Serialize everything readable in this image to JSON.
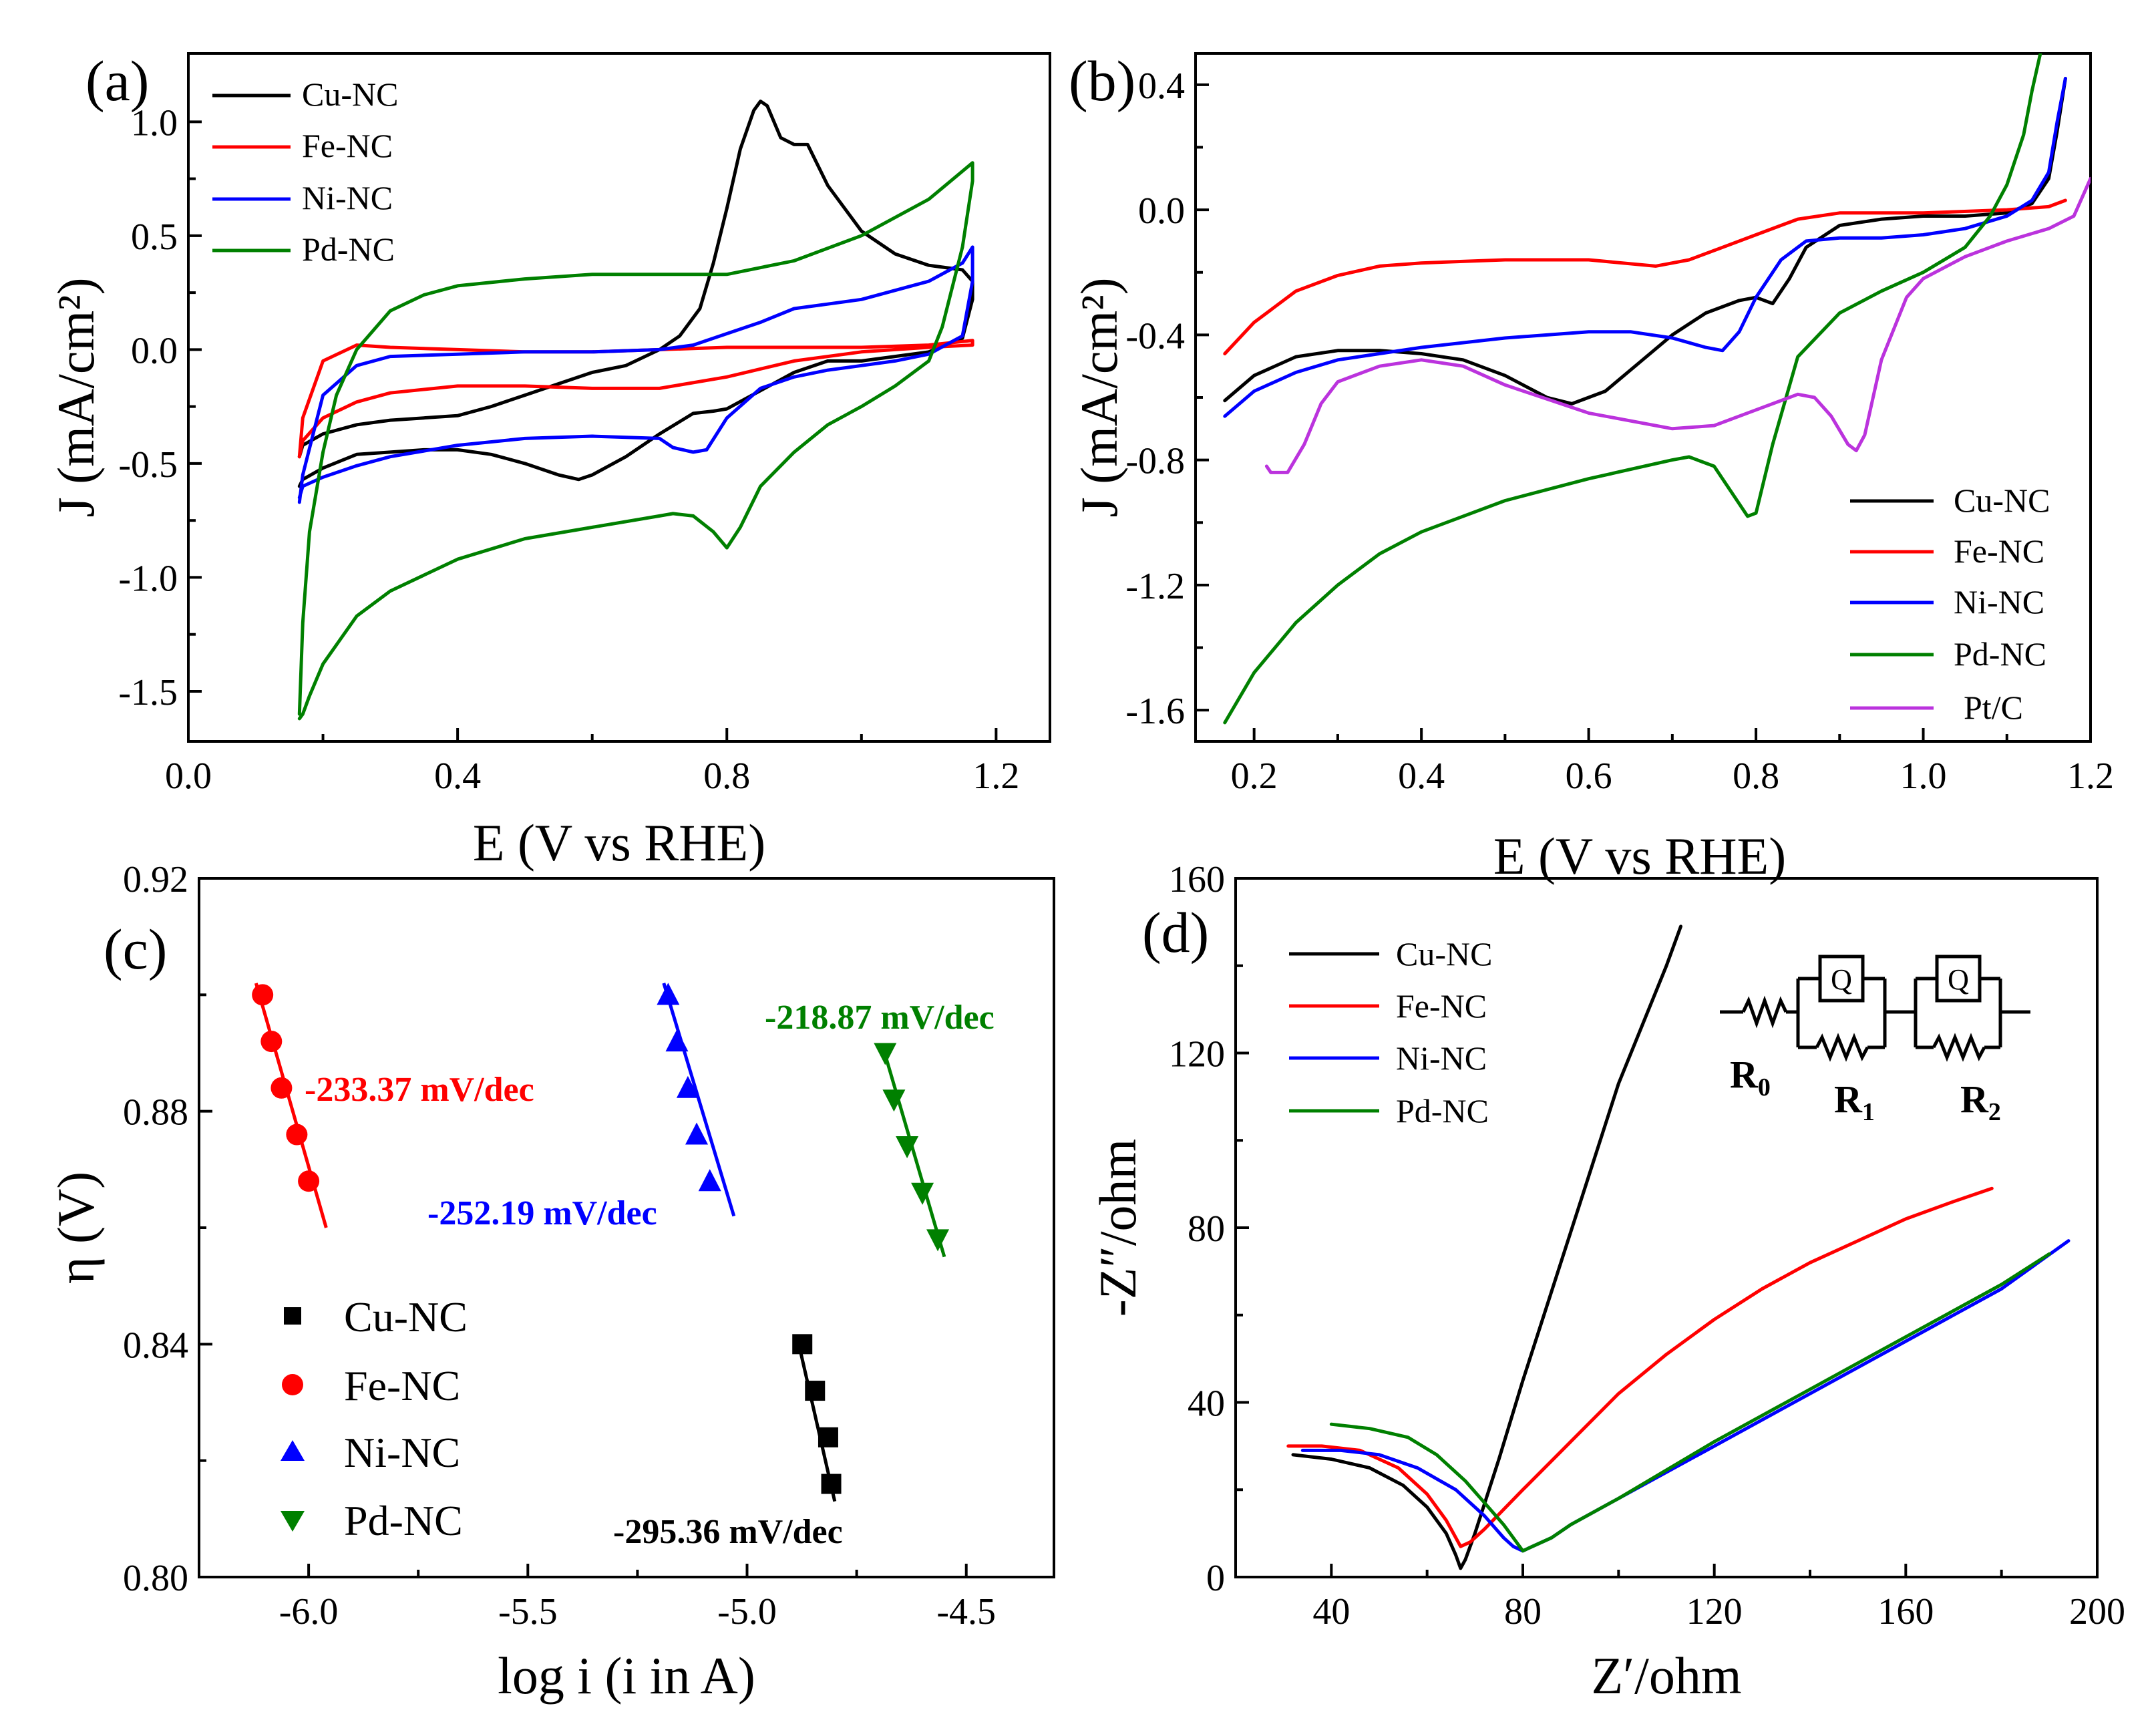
{
  "chart_data": [
    {
      "panel": "(a)",
      "type": "line",
      "xlabel": "E (V vs RHE)",
      "ylabel": "J (mA/cm²)",
      "xlim": [
        0.0,
        1.28
      ],
      "ylim": [
        -1.72,
        1.3
      ],
      "xticks": [
        0.0,
        0.4,
        0.8,
        1.2
      ],
      "xtick_labels": [
        "0.0",
        "0.4",
        "0.8",
        "1.2"
      ],
      "yticks": [
        -1.5,
        -1.0,
        -0.5,
        0.0,
        0.5,
        1.0
      ],
      "ytick_labels": [
        "-1.5",
        "-1.0",
        "-0.5",
        "0.0",
        "0.5",
        "1.0"
      ],
      "legend": [
        "Cu-NC",
        "Fe-NC",
        "Ni-NC",
        "Pd-NC"
      ],
      "series": [
        {
          "name": "Cu-NC",
          "color": "#000000",
          "x": [
            0.165,
            0.17,
            0.2,
            0.25,
            0.3,
            0.35,
            0.4,
            0.45,
            0.5,
            0.55,
            0.6,
            0.65,
            0.7,
            0.73,
            0.76,
            0.78,
            0.8,
            0.82,
            0.84,
            0.85,
            0.86,
            0.87,
            0.88,
            0.9,
            0.92,
            0.95,
            1.0,
            1.05,
            1.1,
            1.15,
            1.165,
            1.165,
            1.15,
            1.1,
            1.05,
            1.0,
            0.95,
            0.9,
            0.85,
            0.8,
            0.78,
            0.75,
            0.7,
            0.65,
            0.6,
            0.58,
            0.55,
            0.5,
            0.45,
            0.4,
            0.35,
            0.3,
            0.25,
            0.2,
            0.17,
            0.165
          ],
          "y": [
            -0.47,
            -0.42,
            -0.37,
            -0.33,
            -0.31,
            -0.3,
            -0.29,
            -0.25,
            -0.2,
            -0.15,
            -0.1,
            -0.07,
            0.0,
            0.06,
            0.18,
            0.38,
            0.62,
            0.88,
            1.05,
            1.09,
            1.07,
            1.0,
            0.93,
            0.9,
            0.9,
            0.72,
            0.52,
            0.42,
            0.37,
            0.35,
            0.3,
            0.22,
            0.05,
            -0.01,
            -0.03,
            -0.05,
            -0.05,
            -0.1,
            -0.18,
            -0.26,
            -0.27,
            -0.28,
            -0.37,
            -0.47,
            -0.55,
            -0.57,
            -0.55,
            -0.5,
            -0.46,
            -0.44,
            -0.44,
            -0.45,
            -0.46,
            -0.52,
            -0.57,
            -0.6
          ]
        },
        {
          "name": "Fe-NC",
          "color": "#ff0000",
          "x": [
            0.165,
            0.17,
            0.2,
            0.25,
            0.3,
            0.4,
            0.5,
            0.6,
            0.7,
            0.8,
            0.9,
            1.0,
            1.1,
            1.165,
            1.165,
            1.1,
            1.0,
            0.9,
            0.8,
            0.7,
            0.6,
            0.5,
            0.4,
            0.3,
            0.25,
            0.2,
            0.17,
            0.165
          ],
          "y": [
            -0.47,
            -0.3,
            -0.05,
            0.02,
            0.01,
            0.0,
            -0.01,
            -0.01,
            0.0,
            0.01,
            0.01,
            0.01,
            0.02,
            0.04,
            0.02,
            0.01,
            -0.01,
            -0.05,
            -0.12,
            -0.17,
            -0.17,
            -0.16,
            -0.16,
            -0.19,
            -0.23,
            -0.3,
            -0.4,
            -0.47
          ]
        },
        {
          "name": "Ni-NC",
          "color": "#0000ff",
          "x": [
            0.165,
            0.17,
            0.2,
            0.25,
            0.3,
            0.4,
            0.5,
            0.6,
            0.7,
            0.75,
            0.8,
            0.85,
            0.9,
            0.95,
            1.0,
            1.05,
            1.1,
            1.15,
            1.165,
            1.165,
            1.15,
            1.1,
            1.05,
            1.0,
            0.95,
            0.9,
            0.85,
            0.8,
            0.77,
            0.75,
            0.72,
            0.7,
            0.6,
            0.5,
            0.4,
            0.3,
            0.25,
            0.2,
            0.17,
            0.165
          ],
          "y": [
            -0.67,
            -0.55,
            -0.2,
            -0.07,
            -0.03,
            -0.02,
            -0.01,
            -0.01,
            0.0,
            0.02,
            0.07,
            0.12,
            0.18,
            0.2,
            0.22,
            0.26,
            0.3,
            0.38,
            0.45,
            0.3,
            0.06,
            -0.02,
            -0.05,
            -0.07,
            -0.09,
            -0.12,
            -0.17,
            -0.3,
            -0.44,
            -0.45,
            -0.43,
            -0.39,
            -0.38,
            -0.39,
            -0.42,
            -0.47,
            -0.51,
            -0.56,
            -0.6,
            -0.65
          ]
        },
        {
          "name": "Pd-NC",
          "color": "#008000",
          "x": [
            0.165,
            0.17,
            0.18,
            0.2,
            0.22,
            0.25,
            0.3,
            0.35,
            0.4,
            0.5,
            0.6,
            0.7,
            0.8,
            0.9,
            1.0,
            1.1,
            1.165,
            1.165,
            1.15,
            1.12,
            1.1,
            1.05,
            1.0,
            0.95,
            0.9,
            0.85,
            0.82,
            0.8,
            0.78,
            0.75,
            0.72,
            0.7,
            0.6,
            0.5,
            0.4,
            0.3,
            0.25,
            0.2,
            0.18,
            0.17,
            0.165
          ],
          "y": [
            -1.6,
            -1.2,
            -0.8,
            -0.45,
            -0.2,
            0.0,
            0.17,
            0.24,
            0.28,
            0.31,
            0.33,
            0.33,
            0.33,
            0.39,
            0.5,
            0.66,
            0.82,
            0.74,
            0.45,
            0.1,
            -0.05,
            -0.16,
            -0.25,
            -0.33,
            -0.45,
            -0.6,
            -0.78,
            -0.87,
            -0.8,
            -0.73,
            -0.72,
            -0.73,
            -0.78,
            -0.83,
            -0.92,
            -1.06,
            -1.17,
            -1.38,
            -1.52,
            -1.6,
            -1.62
          ]
        }
      ]
    },
    {
      "panel": "(b)",
      "type": "line",
      "xlabel": "E (V vs RHE)",
      "ylabel": "J (mA/cm²)",
      "xlim": [
        0.13,
        1.2
      ],
      "ylim": [
        -1.7,
        0.5
      ],
      "xticks": [
        0.2,
        0.4,
        0.6,
        0.8,
        1.0,
        1.2
      ],
      "xtick_labels": [
        "0.2",
        "0.4",
        "0.6",
        "0.8",
        "1.0",
        "1.2"
      ],
      "yticks": [
        -1.6,
        -1.2,
        -0.8,
        -0.4,
        0.0,
        0.4
      ],
      "ytick_labels": [
        "-1.6",
        "-1.2",
        "-0.8",
        "-0.4",
        "0.0",
        "0.4"
      ],
      "legend": [
        "Cu-NC",
        "Fe-NC",
        "Ni-NC",
        "Pd-NC",
        "Pt/C"
      ],
      "series": [
        {
          "name": "Cu-NC",
          "color": "#000000",
          "x": [
            0.165,
            0.2,
            0.25,
            0.3,
            0.35,
            0.4,
            0.45,
            0.5,
            0.55,
            0.58,
            0.62,
            0.66,
            0.7,
            0.74,
            0.78,
            0.8,
            0.82,
            0.84,
            0.86,
            0.9,
            0.95,
            1.0,
            1.05,
            1.1,
            1.13,
            1.15,
            1.16,
            1.17
          ],
          "y": [
            -0.61,
            -0.53,
            -0.47,
            -0.45,
            -0.45,
            -0.46,
            -0.48,
            -0.53,
            -0.6,
            -0.62,
            -0.58,
            -0.49,
            -0.4,
            -0.33,
            -0.29,
            -0.28,
            -0.3,
            -0.22,
            -0.12,
            -0.05,
            -0.03,
            -0.02,
            -0.02,
            -0.01,
            0.02,
            0.1,
            0.25,
            0.42
          ]
        },
        {
          "name": "Fe-NC",
          "color": "#ff0000",
          "x": [
            0.165,
            0.2,
            0.25,
            0.3,
            0.35,
            0.4,
            0.5,
            0.6,
            0.68,
            0.72,
            0.76,
            0.8,
            0.85,
            0.9,
            1.0,
            1.1,
            1.15,
            1.17
          ],
          "y": [
            -0.46,
            -0.36,
            -0.26,
            -0.21,
            -0.18,
            -0.17,
            -0.16,
            -0.16,
            -0.18,
            -0.16,
            -0.12,
            -0.08,
            -0.03,
            -0.01,
            -0.01,
            0.0,
            0.01,
            0.03
          ]
        },
        {
          "name": "Ni-NC",
          "color": "#0000ff",
          "x": [
            0.165,
            0.2,
            0.25,
            0.3,
            0.4,
            0.5,
            0.6,
            0.65,
            0.7,
            0.74,
            0.76,
            0.78,
            0.8,
            0.83,
            0.86,
            0.9,
            0.95,
            1.0,
            1.05,
            1.1,
            1.13,
            1.15,
            1.16,
            1.17
          ],
          "y": [
            -0.66,
            -0.58,
            -0.52,
            -0.48,
            -0.44,
            -0.41,
            -0.39,
            -0.39,
            -0.41,
            -0.44,
            -0.45,
            -0.39,
            -0.28,
            -0.16,
            -0.1,
            -0.09,
            -0.09,
            -0.08,
            -0.06,
            -0.02,
            0.03,
            0.12,
            0.28,
            0.42
          ]
        },
        {
          "name": "Pd-NC",
          "color": "#008000",
          "x": [
            0.165,
            0.2,
            0.25,
            0.3,
            0.35,
            0.4,
            0.5,
            0.6,
            0.7,
            0.72,
            0.75,
            0.77,
            0.79,
            0.8,
            0.82,
            0.85,
            0.9,
            0.95,
            1.0,
            1.05,
            1.08,
            1.1,
            1.12,
            1.13,
            1.14
          ],
          "y": [
            -1.64,
            -1.48,
            -1.32,
            -1.2,
            -1.1,
            -1.03,
            -0.93,
            -0.86,
            -0.8,
            -0.79,
            -0.82,
            -0.9,
            -0.98,
            -0.97,
            -0.75,
            -0.47,
            -0.33,
            -0.26,
            -0.2,
            -0.12,
            -0.02,
            0.08,
            0.24,
            0.38,
            0.5
          ]
        },
        {
          "name": "Pt/C",
          "color": "#bb33dd",
          "x": [
            0.215,
            0.22,
            0.24,
            0.26,
            0.28,
            0.3,
            0.35,
            0.4,
            0.45,
            0.5,
            0.6,
            0.7,
            0.75,
            0.8,
            0.85,
            0.87,
            0.89,
            0.91,
            0.92,
            0.93,
            0.95,
            0.98,
            1.0,
            1.05,
            1.1,
            1.15,
            1.18,
            1.2
          ],
          "y": [
            -0.82,
            -0.84,
            -0.84,
            -0.75,
            -0.62,
            -0.55,
            -0.5,
            -0.48,
            -0.5,
            -0.56,
            -0.65,
            -0.7,
            -0.69,
            -0.64,
            -0.59,
            -0.6,
            -0.66,
            -0.75,
            -0.77,
            -0.72,
            -0.48,
            -0.28,
            -0.22,
            -0.15,
            -0.1,
            -0.06,
            -0.02,
            0.1
          ]
        }
      ]
    },
    {
      "panel": "(c)",
      "type": "scatter",
      "xlabel": "log i (i in A)",
      "ylabel": "η (V)",
      "xlim": [
        -6.25,
        -4.3
      ],
      "ylim": [
        0.8,
        0.92
      ],
      "xticks": [
        -6.0,
        -5.5,
        -5.0,
        -4.5
      ],
      "xtick_labels": [
        "-6.0",
        "-5.5",
        "-5.0",
        "-4.5"
      ],
      "yticks": [
        0.8,
        0.84,
        0.88,
        0.92
      ],
      "ytick_labels": [
        "0.80",
        "0.84",
        "0.88",
        "0.92"
      ],
      "legend": [
        "Cu-NC",
        "Fe-NC",
        "Ni-NC",
        "Pd-NC"
      ],
      "series": [
        {
          "name": "Cu-NC",
          "color": "#000000",
          "marker": "square",
          "x": [
            -4.874,
            -4.845,
            -4.815,
            -4.808
          ],
          "y": [
            0.84,
            0.832,
            0.824,
            0.816
          ],
          "fit": {
            "x": [
              -4.885,
              -4.8
            ],
            "y": [
              0.841,
              0.813
            ]
          },
          "slope_label": "-295.36 mV/dec"
        },
        {
          "name": "Fe-NC",
          "color": "#ff0000",
          "marker": "circle",
          "x": [
            -6.105,
            -6.085,
            -6.062,
            -6.027,
            -6.0
          ],
          "y": [
            0.9,
            0.892,
            0.884,
            0.876,
            0.868
          ],
          "fit": {
            "x": [
              -6.12,
              -5.96
            ],
            "y": [
              0.902,
              0.86
            ]
          },
          "slope_label": "-233.37 mV/dec"
        },
        {
          "name": "Ni-NC",
          "color": "#0000ff",
          "marker": "triangle-up",
          "x": [
            -5.18,
            -5.16,
            -5.135,
            -5.115,
            -5.085
          ],
          "y": [
            0.9,
            0.892,
            0.884,
            0.876,
            0.868
          ],
          "fit": {
            "x": [
              -5.19,
              -5.03
            ],
            "y": [
              0.902,
              0.862
            ]
          },
          "slope_label": "-252.19 mV/dec"
        },
        {
          "name": "Pd-NC",
          "color": "#008000",
          "marker": "triangle-down",
          "x": [
            -4.685,
            -4.665,
            -4.635,
            -4.6,
            -4.565
          ],
          "y": [
            0.89,
            0.882,
            0.874,
            0.866,
            0.858
          ],
          "fit": {
            "x": [
              -4.69,
              -4.55
            ],
            "y": [
              0.891,
              0.855
            ]
          },
          "slope_label": "-218.87 mV/dec"
        }
      ]
    },
    {
      "panel": "(d)",
      "type": "line",
      "xlabel": "Z′/ohm",
      "ylabel": "-Z″/ohm",
      "xlim": [
        20,
        200
      ],
      "ylim": [
        0,
        160
      ],
      "xticks": [
        40,
        80,
        120,
        160,
        200
      ],
      "xtick_labels": [
        "40",
        "80",
        "120",
        "160",
        "200"
      ],
      "yticks": [
        0,
        40,
        80,
        120,
        160
      ],
      "ytick_labels": [
        "0",
        "40",
        "80",
        "120",
        "160"
      ],
      "legend": [
        "Cu-NC",
        "Fe-NC",
        "Ni-NC",
        "Pd-NC"
      ],
      "series": [
        {
          "name": "Cu-NC",
          "color": "#000000",
          "x": [
            32,
            40,
            48,
            55,
            60,
            64,
            66,
            67,
            68,
            70,
            75,
            80,
            90,
            100,
            110,
            113
          ],
          "y": [
            28,
            27,
            25,
            21,
            16,
            10,
            5,
            2,
            4,
            10,
            27,
            45,
            79,
            113,
            140,
            149
          ]
        },
        {
          "name": "Fe-NC",
          "color": "#ff0000",
          "x": [
            31,
            38,
            46,
            54,
            60,
            64,
            66,
            67,
            69,
            72,
            80,
            90,
            100,
            110,
            120,
            130,
            140,
            150,
            160,
            170,
            178
          ],
          "y": [
            30,
            30,
            29,
            25,
            19,
            13,
            9,
            7,
            8,
            11,
            20,
            31,
            42,
            51,
            59,
            66,
            72,
            77,
            82,
            86,
            89
          ]
        },
        {
          "name": "Ni-NC",
          "color": "#0000ff",
          "x": [
            34,
            42,
            50,
            58,
            66,
            72,
            76,
            78,
            80,
            82,
            86,
            90,
            100,
            120,
            140,
            160,
            180,
            194
          ],
          "y": [
            29,
            29,
            28,
            25,
            20,
            14,
            9,
            7,
            6,
            7,
            9,
            12,
            18,
            30,
            42,
            54,
            66,
            77
          ]
        },
        {
          "name": "Pd-NC",
          "color": "#008000",
          "x": [
            40,
            48,
            56,
            62,
            68,
            72,
            76,
            78,
            80,
            82,
            86,
            90,
            100,
            120,
            140,
            160,
            180,
            190
          ],
          "y": [
            35,
            34,
            32,
            28,
            22,
            17,
            12,
            9,
            6,
            7,
            9,
            12,
            18,
            31,
            43,
            55,
            67,
            74
          ]
        }
      ],
      "inset_circuit": {
        "labels": [
          "R0",
          "R1",
          "R2"
        ],
        "element": "Q"
      }
    }
  ]
}
